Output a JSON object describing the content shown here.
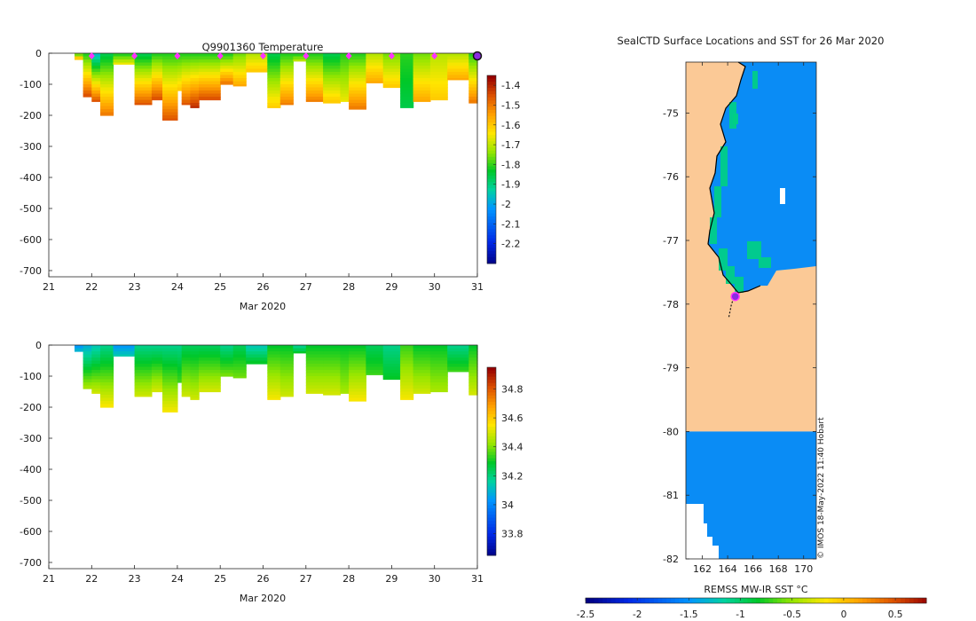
{
  "figure": {
    "credit": "© IMOS 18-May-2022 11:40 Hobart"
  },
  "colors": {
    "land": "#fbc996",
    "sea": "#0a8cf5",
    "marker_pink": "#ff33ff",
    "marker_purple": "#8a2be2"
  },
  "chart_data": [
    {
      "id": "temperature",
      "type": "heatmap",
      "title": "Q9901360  Temperature",
      "xlabel": "Mar 2020",
      "ylabel": "",
      "xlim": [
        21,
        31
      ],
      "ylim": [
        -720,
        0
      ],
      "x_ticks": [
        "21",
        "22",
        "23",
        "24",
        "25",
        "26",
        "27",
        "28",
        "29",
        "30",
        "31"
      ],
      "y_ticks": [
        "0",
        "-100",
        "-200",
        "-300",
        "-400",
        "-500",
        "-600",
        "-700"
      ],
      "colorbar": {
        "range": [
          -2.3,
          -1.35
        ],
        "ticks": [
          "-1.4",
          "-1.5",
          "-1.6",
          "-1.7",
          "-1.8",
          "-1.9",
          "-2",
          "-2.1",
          "-2.2"
        ],
        "tick_values": [
          -1.4,
          -1.5,
          -1.6,
          -1.7,
          -1.8,
          -1.9,
          -2.0,
          -2.1,
          -2.2
        ]
      },
      "daily_markers_x": [
        22,
        23,
        24,
        25,
        26,
        27,
        28,
        29,
        30
      ],
      "last_profile_x": 31,
      "profiles": [
        {
          "x": 21.6,
          "w": 0.2,
          "depth": 20,
          "top": -1.75,
          "bottom": -1.6
        },
        {
          "x": 21.8,
          "w": 0.2,
          "depth": 140,
          "top": -1.8,
          "bottom": -1.45
        },
        {
          "x": 22.0,
          "w": 0.2,
          "depth": 155,
          "top": -1.95,
          "bottom": -1.45
        },
        {
          "x": 22.2,
          "w": 0.3,
          "depth": 200,
          "top": -1.85,
          "bottom": -1.5
        },
        {
          "x": 22.5,
          "w": 0.5,
          "depth": 35,
          "top": -1.8,
          "bottom": -1.65
        },
        {
          "x": 23.0,
          "w": 0.4,
          "depth": 165,
          "top": -1.85,
          "bottom": -1.45
        },
        {
          "x": 23.4,
          "w": 0.25,
          "depth": 150,
          "top": -1.8,
          "bottom": -1.45
        },
        {
          "x": 23.65,
          "w": 0.35,
          "depth": 215,
          "top": -1.8,
          "bottom": -1.45
        },
        {
          "x": 24.0,
          "w": 0.1,
          "depth": 120,
          "top": -1.8,
          "bottom": -1.6
        },
        {
          "x": 24.1,
          "w": 0.2,
          "depth": 165,
          "top": -1.8,
          "bottom": -1.45
        },
        {
          "x": 24.3,
          "w": 0.2,
          "depth": 175,
          "top": -1.8,
          "bottom": -1.4
        },
        {
          "x": 24.5,
          "w": 0.5,
          "depth": 150,
          "top": -1.8,
          "bottom": -1.45
        },
        {
          "x": 25.0,
          "w": 0.3,
          "depth": 100,
          "top": -1.8,
          "bottom": -1.5
        },
        {
          "x": 25.3,
          "w": 0.3,
          "depth": 105,
          "top": -1.75,
          "bottom": -1.55
        },
        {
          "x": 25.6,
          "w": 0.5,
          "depth": 60,
          "top": -1.7,
          "bottom": -1.6
        },
        {
          "x": 26.1,
          "w": 0.3,
          "depth": 175,
          "top": -1.85,
          "bottom": -1.6
        },
        {
          "x": 26.4,
          "w": 0.3,
          "depth": 165,
          "top": -1.8,
          "bottom": -1.5
        },
        {
          "x": 26.7,
          "w": 0.3,
          "depth": 25,
          "top": -1.8,
          "bottom": -1.7
        },
        {
          "x": 27.0,
          "w": 0.4,
          "depth": 155,
          "top": -1.8,
          "bottom": -1.5
        },
        {
          "x": 27.4,
          "w": 0.4,
          "depth": 160,
          "top": -1.85,
          "bottom": -1.6
        },
        {
          "x": 27.8,
          "w": 0.2,
          "depth": 155,
          "top": -1.8,
          "bottom": -1.65
        },
        {
          "x": 28.0,
          "w": 0.4,
          "depth": 180,
          "top": -1.8,
          "bottom": -1.5
        },
        {
          "x": 28.4,
          "w": 0.4,
          "depth": 95,
          "top": -1.7,
          "bottom": -1.55
        },
        {
          "x": 28.8,
          "w": 0.4,
          "depth": 110,
          "top": -1.75,
          "bottom": -1.6
        },
        {
          "x": 29.2,
          "w": 0.3,
          "depth": 175,
          "top": -1.8,
          "bottom": -1.85
        },
        {
          "x": 29.5,
          "w": 0.4,
          "depth": 155,
          "top": -1.75,
          "bottom": -1.55
        },
        {
          "x": 29.9,
          "w": 0.4,
          "depth": 150,
          "top": -1.7,
          "bottom": -1.6
        },
        {
          "x": 30.3,
          "w": 0.5,
          "depth": 85,
          "top": -1.7,
          "bottom": -1.55
        },
        {
          "x": 30.8,
          "w": 0.2,
          "depth": 160,
          "top": -1.8,
          "bottom": -1.5
        }
      ]
    },
    {
      "id": "salinity",
      "type": "heatmap",
      "title": "",
      "xlabel": "Mar 2020",
      "ylabel": "",
      "xlim": [
        21,
        31
      ],
      "ylim": [
        -720,
        0
      ],
      "x_ticks": [
        "21",
        "22",
        "23",
        "24",
        "25",
        "26",
        "27",
        "28",
        "29",
        "30",
        "31"
      ],
      "y_ticks": [
        "0",
        "-100",
        "-200",
        "-300",
        "-400",
        "-500",
        "-600",
        "-700"
      ],
      "colorbar": {
        "range": [
          33.65,
          34.95
        ],
        "ticks": [
          "34.8",
          "34.6",
          "34.4",
          "34.2",
          "34",
          "33.8"
        ],
        "tick_values": [
          34.8,
          34.6,
          34.4,
          34.2,
          34.0,
          33.8
        ]
      },
      "profiles": [
        {
          "x": 21.6,
          "w": 0.2,
          "depth": 20,
          "top": 34.05,
          "bottom": 34.1
        },
        {
          "x": 21.8,
          "w": 0.2,
          "depth": 140,
          "top": 34.1,
          "bottom": 34.45
        },
        {
          "x": 22.0,
          "w": 0.2,
          "depth": 155,
          "top": 34.15,
          "bottom": 34.5
        },
        {
          "x": 22.2,
          "w": 0.3,
          "depth": 200,
          "top": 34.2,
          "bottom": 34.55
        },
        {
          "x": 22.5,
          "w": 0.5,
          "depth": 35,
          "top": 34.05,
          "bottom": 34.15
        },
        {
          "x": 23.0,
          "w": 0.4,
          "depth": 165,
          "top": 34.2,
          "bottom": 34.5
        },
        {
          "x": 23.4,
          "w": 0.25,
          "depth": 150,
          "top": 34.2,
          "bottom": 34.5
        },
        {
          "x": 23.65,
          "w": 0.35,
          "depth": 215,
          "top": 34.2,
          "bottom": 34.55
        },
        {
          "x": 24.0,
          "w": 0.1,
          "depth": 120,
          "top": 34.2,
          "bottom": 34.35
        },
        {
          "x": 24.1,
          "w": 0.2,
          "depth": 165,
          "top": 34.25,
          "bottom": 34.5
        },
        {
          "x": 24.3,
          "w": 0.2,
          "depth": 175,
          "top": 34.25,
          "bottom": 34.5
        },
        {
          "x": 24.5,
          "w": 0.5,
          "depth": 150,
          "top": 34.25,
          "bottom": 34.5
        },
        {
          "x": 25.0,
          "w": 0.3,
          "depth": 100,
          "top": 34.2,
          "bottom": 34.4
        },
        {
          "x": 25.3,
          "w": 0.3,
          "depth": 105,
          "top": 34.25,
          "bottom": 34.4
        },
        {
          "x": 25.6,
          "w": 0.5,
          "depth": 60,
          "top": 34.15,
          "bottom": 34.3
        },
        {
          "x": 26.1,
          "w": 0.3,
          "depth": 175,
          "top": 34.3,
          "bottom": 34.55
        },
        {
          "x": 26.4,
          "w": 0.3,
          "depth": 165,
          "top": 34.3,
          "bottom": 34.5
        },
        {
          "x": 26.7,
          "w": 0.3,
          "depth": 25,
          "top": 34.2,
          "bottom": 34.3
        },
        {
          "x": 27.0,
          "w": 0.4,
          "depth": 155,
          "top": 34.3,
          "bottom": 34.5
        },
        {
          "x": 27.4,
          "w": 0.4,
          "depth": 160,
          "top": 34.3,
          "bottom": 34.5
        },
        {
          "x": 27.8,
          "w": 0.2,
          "depth": 155,
          "top": 34.3,
          "bottom": 34.45
        },
        {
          "x": 28.0,
          "w": 0.4,
          "depth": 180,
          "top": 34.3,
          "bottom": 34.55
        },
        {
          "x": 28.4,
          "w": 0.4,
          "depth": 95,
          "top": 34.25,
          "bottom": 34.35
        },
        {
          "x": 28.8,
          "w": 0.4,
          "depth": 110,
          "top": 34.2,
          "bottom": 34.3
        },
        {
          "x": 29.2,
          "w": 0.3,
          "depth": 175,
          "top": 34.35,
          "bottom": 34.55
        },
        {
          "x": 29.5,
          "w": 0.4,
          "depth": 155,
          "top": 34.3,
          "bottom": 34.5
        },
        {
          "x": 29.9,
          "w": 0.4,
          "depth": 150,
          "top": 34.3,
          "bottom": 34.45
        },
        {
          "x": 30.3,
          "w": 0.5,
          "depth": 85,
          "top": 34.2,
          "bottom": 34.35
        },
        {
          "x": 30.8,
          "w": 0.2,
          "depth": 160,
          "top": 34.3,
          "bottom": 34.5
        }
      ]
    },
    {
      "id": "sst_map",
      "type": "heatmap",
      "title": "SealCTD Surface Locations and SST for 26 Mar 2020",
      "xlabel": "",
      "ylabel": "",
      "xlim": [
        160.7,
        171
      ],
      "ylim": [
        -82,
        -74.2
      ],
      "x_ticks": [
        "162",
        "164",
        "166",
        "168",
        "170"
      ],
      "x_tick_values": [
        162,
        164,
        166,
        168,
        170
      ],
      "y_ticks": [
        "-75",
        "-76",
        "-77",
        "-78",
        "-79",
        "-80",
        "-81",
        "-82"
      ],
      "y_tick_values": [
        -75,
        -76,
        -77,
        -78,
        -79,
        -80,
        -81,
        -82
      ],
      "colorbar": {
        "label": "REMSS MW-IR SST °C",
        "range": [
          -2.5,
          0.8
        ],
        "ticks": [
          "-2.5",
          "-2",
          "-1.5",
          "-1",
          "-0.5",
          "0",
          "0.5"
        ],
        "tick_values": [
          -2.5,
          -2,
          -1.5,
          -1,
          -0.5,
          0,
          0.5
        ]
      },
      "sst_open_water_c": -1.8,
      "sst_coastal_c": -1.1,
      "data_gap_lat": -80,
      "track": {
        "lon": [
          164.1,
          164.2,
          164.3,
          164.4,
          164.5,
          164.6
        ],
        "lat": [
          -78.2,
          -78.1,
          -78.0,
          -77.95,
          -77.9,
          -77.85
        ]
      },
      "latest_position": {
        "lon": 164.6,
        "lat": -77.88
      }
    }
  ]
}
